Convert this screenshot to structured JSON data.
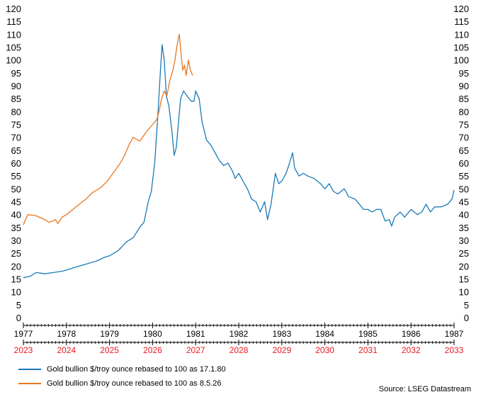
{
  "chart_data": {
    "type": "line",
    "title": "",
    "xlabel": "",
    "ylabel": "",
    "ylim": [
      0,
      120
    ],
    "y_ticks": [
      0,
      5,
      10,
      15,
      20,
      25,
      30,
      35,
      40,
      45,
      50,
      55,
      60,
      65,
      70,
      75,
      80,
      85,
      90,
      95,
      100,
      105,
      110,
      115,
      120
    ],
    "xlim": [
      1977,
      1987
    ],
    "x_ticks_primary": [
      "1977",
      "1978",
      "1979",
      "1980",
      "1981",
      "1982",
      "1983",
      "1984",
      "1985",
      "1986",
      "1987"
    ],
    "x_ticks_secondary": [
      "2023",
      "2024",
      "2025",
      "2026",
      "2027",
      "2028",
      "2029",
      "2030",
      "2031",
      "2032",
      "2033"
    ],
    "grid": false,
    "legend_position": "bottom-left",
    "series": [
      {
        "name": "Gold bullion $/troy ounce rebased to 100 as 17.1.80",
        "color": "#1a7ab8",
        "points": [
          [
            1977.0,
            15.5
          ],
          [
            1977.15,
            16.0
          ],
          [
            1977.3,
            17.5
          ],
          [
            1977.5,
            17.0
          ],
          [
            1977.7,
            17.5
          ],
          [
            1977.9,
            18.0
          ],
          [
            1978.1,
            19.0
          ],
          [
            1978.3,
            20.0
          ],
          [
            1978.5,
            21.0
          ],
          [
            1978.7,
            22.0
          ],
          [
            1978.9,
            23.5
          ],
          [
            1979.0,
            24.0
          ],
          [
            1979.2,
            26.0
          ],
          [
            1979.4,
            29.5
          ],
          [
            1979.55,
            31.0
          ],
          [
            1979.7,
            35.0
          ],
          [
            1979.8,
            37.0
          ],
          [
            1979.9,
            45.0
          ],
          [
            1979.97,
            49.0
          ],
          [
            1980.05,
            60.0
          ],
          [
            1980.12,
            78.0
          ],
          [
            1980.18,
            95.0
          ],
          [
            1980.22,
            106.0
          ],
          [
            1980.27,
            100.0
          ],
          [
            1980.32,
            86.0
          ],
          [
            1980.38,
            82.0
          ],
          [
            1980.45,
            72.0
          ],
          [
            1980.5,
            63.0
          ],
          [
            1980.55,
            66.0
          ],
          [
            1980.65,
            85.0
          ],
          [
            1980.72,
            88.0
          ],
          [
            1980.8,
            86.0
          ],
          [
            1980.9,
            84.0
          ],
          [
            1980.96,
            84.0
          ],
          [
            1981.0,
            88.0
          ],
          [
            1981.08,
            85.0
          ],
          [
            1981.15,
            76.0
          ],
          [
            1981.25,
            69.0
          ],
          [
            1981.35,
            67.0
          ],
          [
            1981.45,
            64.0
          ],
          [
            1981.55,
            61.0
          ],
          [
            1981.65,
            59.0
          ],
          [
            1981.75,
            60.0
          ],
          [
            1981.85,
            57.0
          ],
          [
            1981.92,
            54.0
          ],
          [
            1982.0,
            56.0
          ],
          [
            1982.1,
            53.0
          ],
          [
            1982.2,
            50.0
          ],
          [
            1982.3,
            46.0
          ],
          [
            1982.4,
            45.0
          ],
          [
            1982.5,
            41.0
          ],
          [
            1982.6,
            45.0
          ],
          [
            1982.67,
            38.0
          ],
          [
            1982.75,
            44.0
          ],
          [
            1982.85,
            56.0
          ],
          [
            1982.93,
            52.0
          ],
          [
            1983.0,
            53.0
          ],
          [
            1983.1,
            56.0
          ],
          [
            1983.18,
            60.0
          ],
          [
            1983.25,
            64.0
          ],
          [
            1983.3,
            58.0
          ],
          [
            1983.4,
            55.0
          ],
          [
            1983.5,
            56.0
          ],
          [
            1983.6,
            55.0
          ],
          [
            1983.75,
            54.0
          ],
          [
            1983.9,
            52.0
          ],
          [
            1984.0,
            50.0
          ],
          [
            1984.1,
            52.0
          ],
          [
            1984.2,
            49.0
          ],
          [
            1984.3,
            48.0
          ],
          [
            1984.45,
            50.0
          ],
          [
            1984.55,
            47.0
          ],
          [
            1984.7,
            46.0
          ],
          [
            1984.8,
            44.0
          ],
          [
            1984.9,
            42.0
          ],
          [
            1985.0,
            42.0
          ],
          [
            1985.1,
            41.0
          ],
          [
            1985.2,
            42.0
          ],
          [
            1985.3,
            42.0
          ],
          [
            1985.4,
            37.5
          ],
          [
            1985.5,
            38.0
          ],
          [
            1985.55,
            35.5
          ],
          [
            1985.62,
            39.0
          ],
          [
            1985.75,
            41.0
          ],
          [
            1985.85,
            39.0
          ],
          [
            1986.0,
            42.0
          ],
          [
            1986.15,
            40.0
          ],
          [
            1986.25,
            41.0
          ],
          [
            1986.35,
            44.0
          ],
          [
            1986.45,
            41.0
          ],
          [
            1986.55,
            43.0
          ],
          [
            1986.7,
            43.0
          ],
          [
            1986.85,
            44.0
          ],
          [
            1986.95,
            46.0
          ],
          [
            1987.0,
            49.5
          ]
        ]
      },
      {
        "name": "Gold bullion $/troy ounce rebased to 100 as 8.5.26",
        "color": "#e87722",
        "points": [
          [
            1977.0,
            36.0
          ],
          [
            1977.05,
            38.0
          ],
          [
            1977.1,
            40.0
          ],
          [
            1977.3,
            39.5
          ],
          [
            1977.5,
            38.0
          ],
          [
            1977.6,
            37.0
          ],
          [
            1977.75,
            38.0
          ],
          [
            1977.8,
            36.5
          ],
          [
            1977.9,
            39.0
          ],
          [
            1978.0,
            40.0
          ],
          [
            1978.15,
            42.0
          ],
          [
            1978.3,
            44.0
          ],
          [
            1978.45,
            46.0
          ],
          [
            1978.6,
            48.5
          ],
          [
            1978.8,
            50.5
          ],
          [
            1978.95,
            53.0
          ],
          [
            1979.1,
            56.5
          ],
          [
            1979.25,
            60.0
          ],
          [
            1979.35,
            63.0
          ],
          [
            1979.45,
            67.0
          ],
          [
            1979.55,
            70.0
          ],
          [
            1979.7,
            68.5
          ],
          [
            1979.85,
            72.0
          ],
          [
            1980.0,
            75.0
          ],
          [
            1980.1,
            77.0
          ],
          [
            1980.15,
            80.0
          ],
          [
            1980.2,
            84.5
          ],
          [
            1980.27,
            88.0
          ],
          [
            1980.33,
            86.0
          ],
          [
            1980.4,
            92.0
          ],
          [
            1980.47,
            96.0
          ],
          [
            1980.52,
            100.0
          ],
          [
            1980.57,
            106.0
          ],
          [
            1980.62,
            110.0
          ],
          [
            1980.67,
            101.0
          ],
          [
            1980.7,
            96.0
          ],
          [
            1980.74,
            98.0
          ],
          [
            1980.78,
            94.0
          ],
          [
            1980.83,
            100.0
          ],
          [
            1980.88,
            96.0
          ],
          [
            1980.93,
            94.0
          ]
        ]
      }
    ]
  },
  "legend": {
    "item1": "Gold bullion $/troy ounce rebased to 100 as 17.1.80",
    "item2": "Gold bullion $/troy ounce rebased to 100 as 8.5.26"
  },
  "source": "Source: LSEG Datastream"
}
